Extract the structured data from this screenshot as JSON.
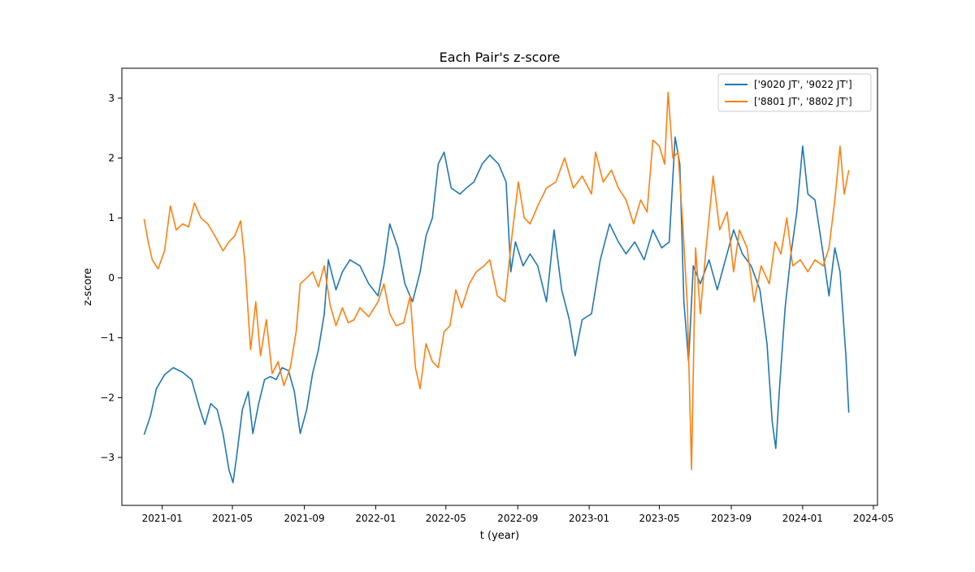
{
  "chart_data": {
    "type": "line",
    "title": "Each Pair's z-score",
    "xlabel": "t (year)",
    "ylabel": "z-score",
    "xlim": [
      "2020-10-24",
      "2024-05-08"
    ],
    "ylim": [
      -3.8,
      3.5
    ],
    "x_ticks": [
      {
        "date": "2021-01-01",
        "label": "2021-01"
      },
      {
        "date": "2021-05-01",
        "label": "2021-05"
      },
      {
        "date": "2021-09-01",
        "label": "2021-09"
      },
      {
        "date": "2022-01-01",
        "label": "2022-01"
      },
      {
        "date": "2022-05-01",
        "label": "2022-05"
      },
      {
        "date": "2022-09-01",
        "label": "2022-09"
      },
      {
        "date": "2023-01-01",
        "label": "2023-01"
      },
      {
        "date": "2023-05-01",
        "label": "2023-05"
      },
      {
        "date": "2023-09-01",
        "label": "2023-09"
      },
      {
        "date": "2024-01-01",
        "label": "2024-01"
      },
      {
        "date": "2024-05-01",
        "label": "2024-05"
      }
    ],
    "y_ticks": [
      {
        "value": -3,
        "label": "−3"
      },
      {
        "value": -2,
        "label": "−2"
      },
      {
        "value": -1,
        "label": "−1"
      },
      {
        "value": 0,
        "label": "0"
      },
      {
        "value": 1,
        "label": "1"
      },
      {
        "value": 2,
        "label": "2"
      },
      {
        "value": 3,
        "label": "3"
      }
    ],
    "grid": false,
    "legend_position": "top-right",
    "series": [
      {
        "name": "['9020 JT', '9022 JT']",
        "color": "#1f77b4",
        "points": [
          [
            "2020-12-01",
            -2.62
          ],
          [
            "2020-12-12",
            -2.3
          ],
          [
            "2020-12-22",
            -1.85
          ],
          [
            "2021-01-05",
            -1.62
          ],
          [
            "2021-01-20",
            -1.5
          ],
          [
            "2021-02-05",
            -1.58
          ],
          [
            "2021-02-20",
            -1.7
          ],
          [
            "2021-03-05",
            -2.15
          ],
          [
            "2021-03-15",
            -2.45
          ],
          [
            "2021-03-25",
            -2.1
          ],
          [
            "2021-04-05",
            -2.2
          ],
          [
            "2021-04-15",
            -2.6
          ],
          [
            "2021-04-25",
            -3.2
          ],
          [
            "2021-05-02",
            -3.42
          ],
          [
            "2021-05-08",
            -3.0
          ],
          [
            "2021-05-18",
            -2.2
          ],
          [
            "2021-05-28",
            -1.9
          ],
          [
            "2021-06-05",
            -2.6
          ],
          [
            "2021-06-15",
            -2.1
          ],
          [
            "2021-06-25",
            -1.7
          ],
          [
            "2021-07-05",
            -1.65
          ],
          [
            "2021-07-15",
            -1.7
          ],
          [
            "2021-07-25",
            -1.5
          ],
          [
            "2021-08-05",
            -1.55
          ],
          [
            "2021-08-15",
            -1.9
          ],
          [
            "2021-08-25",
            -2.6
          ],
          [
            "2021-09-05",
            -2.2
          ],
          [
            "2021-09-15",
            -1.6
          ],
          [
            "2021-09-25",
            -1.2
          ],
          [
            "2021-10-05",
            -0.6
          ],
          [
            "2021-10-12",
            0.3
          ],
          [
            "2021-10-25",
            -0.2
          ],
          [
            "2021-11-05",
            0.1
          ],
          [
            "2021-11-18",
            0.3
          ],
          [
            "2021-12-05",
            0.2
          ],
          [
            "2021-12-20",
            -0.1
          ],
          [
            "2022-01-05",
            -0.3
          ],
          [
            "2022-01-15",
            0.2
          ],
          [
            "2022-01-25",
            0.9
          ],
          [
            "2022-02-08",
            0.5
          ],
          [
            "2022-02-20",
            -0.1
          ],
          [
            "2022-03-05",
            -0.4
          ],
          [
            "2022-03-18",
            0.1
          ],
          [
            "2022-03-28",
            0.7
          ],
          [
            "2022-04-08",
            1.0
          ],
          [
            "2022-04-18",
            1.9
          ],
          [
            "2022-04-28",
            2.1
          ],
          [
            "2022-05-10",
            1.5
          ],
          [
            "2022-05-25",
            1.4
          ],
          [
            "2022-06-05",
            1.5
          ],
          [
            "2022-06-18",
            1.6
          ],
          [
            "2022-07-02",
            1.9
          ],
          [
            "2022-07-15",
            2.05
          ],
          [
            "2022-07-30",
            1.9
          ],
          [
            "2022-08-12",
            1.6
          ],
          [
            "2022-08-20",
            0.1
          ],
          [
            "2022-08-28",
            0.6
          ],
          [
            "2022-09-10",
            0.2
          ],
          [
            "2022-09-22",
            0.4
          ],
          [
            "2022-10-05",
            0.2
          ],
          [
            "2022-10-20",
            -0.4
          ],
          [
            "2022-11-02",
            0.8
          ],
          [
            "2022-11-15",
            -0.2
          ],
          [
            "2022-11-28",
            -0.7
          ],
          [
            "2022-12-08",
            -1.3
          ],
          [
            "2022-12-20",
            -0.7
          ],
          [
            "2023-01-05",
            -0.6
          ],
          [
            "2023-01-20",
            0.3
          ],
          [
            "2023-02-05",
            0.9
          ],
          [
            "2023-02-20",
            0.6
          ],
          [
            "2023-03-05",
            0.4
          ],
          [
            "2023-03-20",
            0.6
          ],
          [
            "2023-04-05",
            0.3
          ],
          [
            "2023-04-20",
            0.8
          ],
          [
            "2023-05-05",
            0.5
          ],
          [
            "2023-05-18",
            0.6
          ],
          [
            "2023-05-28",
            2.35
          ],
          [
            "2023-06-05",
            1.9
          ],
          [
            "2023-06-12",
            -0.4
          ],
          [
            "2023-06-20",
            -1.4
          ],
          [
            "2023-06-28",
            0.2
          ],
          [
            "2023-07-10",
            -0.1
          ],
          [
            "2023-07-25",
            0.3
          ],
          [
            "2023-08-08",
            -0.2
          ],
          [
            "2023-08-22",
            0.3
          ],
          [
            "2023-09-05",
            0.8
          ],
          [
            "2023-09-20",
            0.4
          ],
          [
            "2023-10-05",
            0.2
          ],
          [
            "2023-10-20",
            -0.2
          ],
          [
            "2023-11-01",
            -1.1
          ],
          [
            "2023-11-10",
            -2.4
          ],
          [
            "2023-11-16",
            -2.85
          ],
          [
            "2023-11-22",
            -1.9
          ],
          [
            "2023-12-02",
            -0.5
          ],
          [
            "2023-12-12",
            0.4
          ],
          [
            "2023-12-22",
            1.1
          ],
          [
            "2024-01-01",
            2.2
          ],
          [
            "2024-01-10",
            1.4
          ],
          [
            "2024-01-22",
            1.3
          ],
          [
            "2024-02-05",
            0.4
          ],
          [
            "2024-02-15",
            -0.3
          ],
          [
            "2024-02-25",
            0.5
          ],
          [
            "2024-03-05",
            0.1
          ],
          [
            "2024-03-15",
            -1.3
          ],
          [
            "2024-03-20",
            -2.25
          ]
        ]
      },
      {
        "name": "['8801 JT', '8802 JT']",
        "color": "#ff7f0e",
        "points": [
          [
            "2020-12-01",
            0.98
          ],
          [
            "2020-12-08",
            0.6
          ],
          [
            "2020-12-15",
            0.3
          ],
          [
            "2020-12-25",
            0.15
          ],
          [
            "2021-01-05",
            0.45
          ],
          [
            "2021-01-15",
            1.2
          ],
          [
            "2021-01-25",
            0.8
          ],
          [
            "2021-02-05",
            0.9
          ],
          [
            "2021-02-15",
            0.85
          ],
          [
            "2021-02-25",
            1.25
          ],
          [
            "2021-03-08",
            1.0
          ],
          [
            "2021-03-20",
            0.9
          ],
          [
            "2021-04-01",
            0.7
          ],
          [
            "2021-04-15",
            0.45
          ],
          [
            "2021-04-25",
            0.6
          ],
          [
            "2021-05-05",
            0.7
          ],
          [
            "2021-05-15",
            0.95
          ],
          [
            "2021-05-22",
            0.3
          ],
          [
            "2021-06-01",
            -1.2
          ],
          [
            "2021-06-10",
            -0.4
          ],
          [
            "2021-06-18",
            -1.3
          ],
          [
            "2021-06-28",
            -0.7
          ],
          [
            "2021-07-08",
            -1.6
          ],
          [
            "2021-07-18",
            -1.4
          ],
          [
            "2021-07-28",
            -1.8
          ],
          [
            "2021-08-08",
            -1.5
          ],
          [
            "2021-08-18",
            -0.9
          ],
          [
            "2021-08-25",
            -0.1
          ],
          [
            "2021-09-05",
            0.0
          ],
          [
            "2021-09-15",
            0.1
          ],
          [
            "2021-09-25",
            -0.15
          ],
          [
            "2021-10-05",
            0.2
          ],
          [
            "2021-10-15",
            -0.45
          ],
          [
            "2021-10-25",
            -0.8
          ],
          [
            "2021-11-05",
            -0.5
          ],
          [
            "2021-11-15",
            -0.75
          ],
          [
            "2021-11-25",
            -0.7
          ],
          [
            "2021-12-05",
            -0.5
          ],
          [
            "2021-12-20",
            -0.65
          ],
          [
            "2022-01-05",
            -0.4
          ],
          [
            "2022-01-15",
            -0.1
          ],
          [
            "2022-01-25",
            -0.6
          ],
          [
            "2022-02-05",
            -0.8
          ],
          [
            "2022-02-18",
            -0.75
          ],
          [
            "2022-03-01",
            -0.3
          ],
          [
            "2022-03-10",
            -1.5
          ],
          [
            "2022-03-18",
            -1.85
          ],
          [
            "2022-03-28",
            -1.1
          ],
          [
            "2022-04-08",
            -1.4
          ],
          [
            "2022-04-18",
            -1.5
          ],
          [
            "2022-04-28",
            -0.9
          ],
          [
            "2022-05-08",
            -0.8
          ],
          [
            "2022-05-18",
            -0.2
          ],
          [
            "2022-05-28",
            -0.5
          ],
          [
            "2022-06-10",
            -0.1
          ],
          [
            "2022-06-22",
            0.1
          ],
          [
            "2022-07-05",
            0.2
          ],
          [
            "2022-07-15",
            0.3
          ],
          [
            "2022-07-28",
            -0.3
          ],
          [
            "2022-08-10",
            -0.4
          ],
          [
            "2022-08-22",
            0.7
          ],
          [
            "2022-09-02",
            1.6
          ],
          [
            "2022-09-12",
            1.0
          ],
          [
            "2022-09-22",
            0.9
          ],
          [
            "2022-10-05",
            1.2
          ],
          [
            "2022-10-20",
            1.5
          ],
          [
            "2022-11-05",
            1.6
          ],
          [
            "2022-11-20",
            2.0
          ],
          [
            "2022-12-05",
            1.5
          ],
          [
            "2022-12-20",
            1.7
          ],
          [
            "2023-01-05",
            1.4
          ],
          [
            "2023-01-12",
            2.1
          ],
          [
            "2023-01-25",
            1.6
          ],
          [
            "2023-02-08",
            1.8
          ],
          [
            "2023-02-20",
            1.5
          ],
          [
            "2023-03-05",
            1.3
          ],
          [
            "2023-03-18",
            0.9
          ],
          [
            "2023-03-30",
            1.3
          ],
          [
            "2023-04-10",
            1.1
          ],
          [
            "2023-04-20",
            2.3
          ],
          [
            "2023-05-01",
            2.2
          ],
          [
            "2023-05-10",
            1.9
          ],
          [
            "2023-05-16",
            3.1
          ],
          [
            "2023-05-24",
            2.0
          ],
          [
            "2023-06-02",
            2.1
          ],
          [
            "2023-06-10",
            0.9
          ],
          [
            "2023-06-18",
            -0.5
          ],
          [
            "2023-06-25",
            -3.2
          ],
          [
            "2023-07-02",
            0.5
          ],
          [
            "2023-07-10",
            -0.6
          ],
          [
            "2023-07-20",
            0.5
          ],
          [
            "2023-08-01",
            1.7
          ],
          [
            "2023-08-12",
            0.8
          ],
          [
            "2023-08-25",
            1.1
          ],
          [
            "2023-09-05",
            0.1
          ],
          [
            "2023-09-15",
            0.8
          ],
          [
            "2023-09-28",
            0.5
          ],
          [
            "2023-10-10",
            -0.4
          ],
          [
            "2023-10-22",
            0.2
          ],
          [
            "2023-11-05",
            -0.1
          ],
          [
            "2023-11-15",
            0.6
          ],
          [
            "2023-11-25",
            0.4
          ],
          [
            "2023-12-05",
            1.0
          ],
          [
            "2023-12-15",
            0.2
          ],
          [
            "2023-12-28",
            0.3
          ],
          [
            "2024-01-10",
            0.1
          ],
          [
            "2024-01-22",
            0.3
          ],
          [
            "2024-02-05",
            0.2
          ],
          [
            "2024-02-15",
            0.5
          ],
          [
            "2024-02-25",
            1.3
          ],
          [
            "2024-03-05",
            2.2
          ],
          [
            "2024-03-12",
            1.4
          ],
          [
            "2024-03-20",
            1.8
          ]
        ]
      }
    ]
  }
}
